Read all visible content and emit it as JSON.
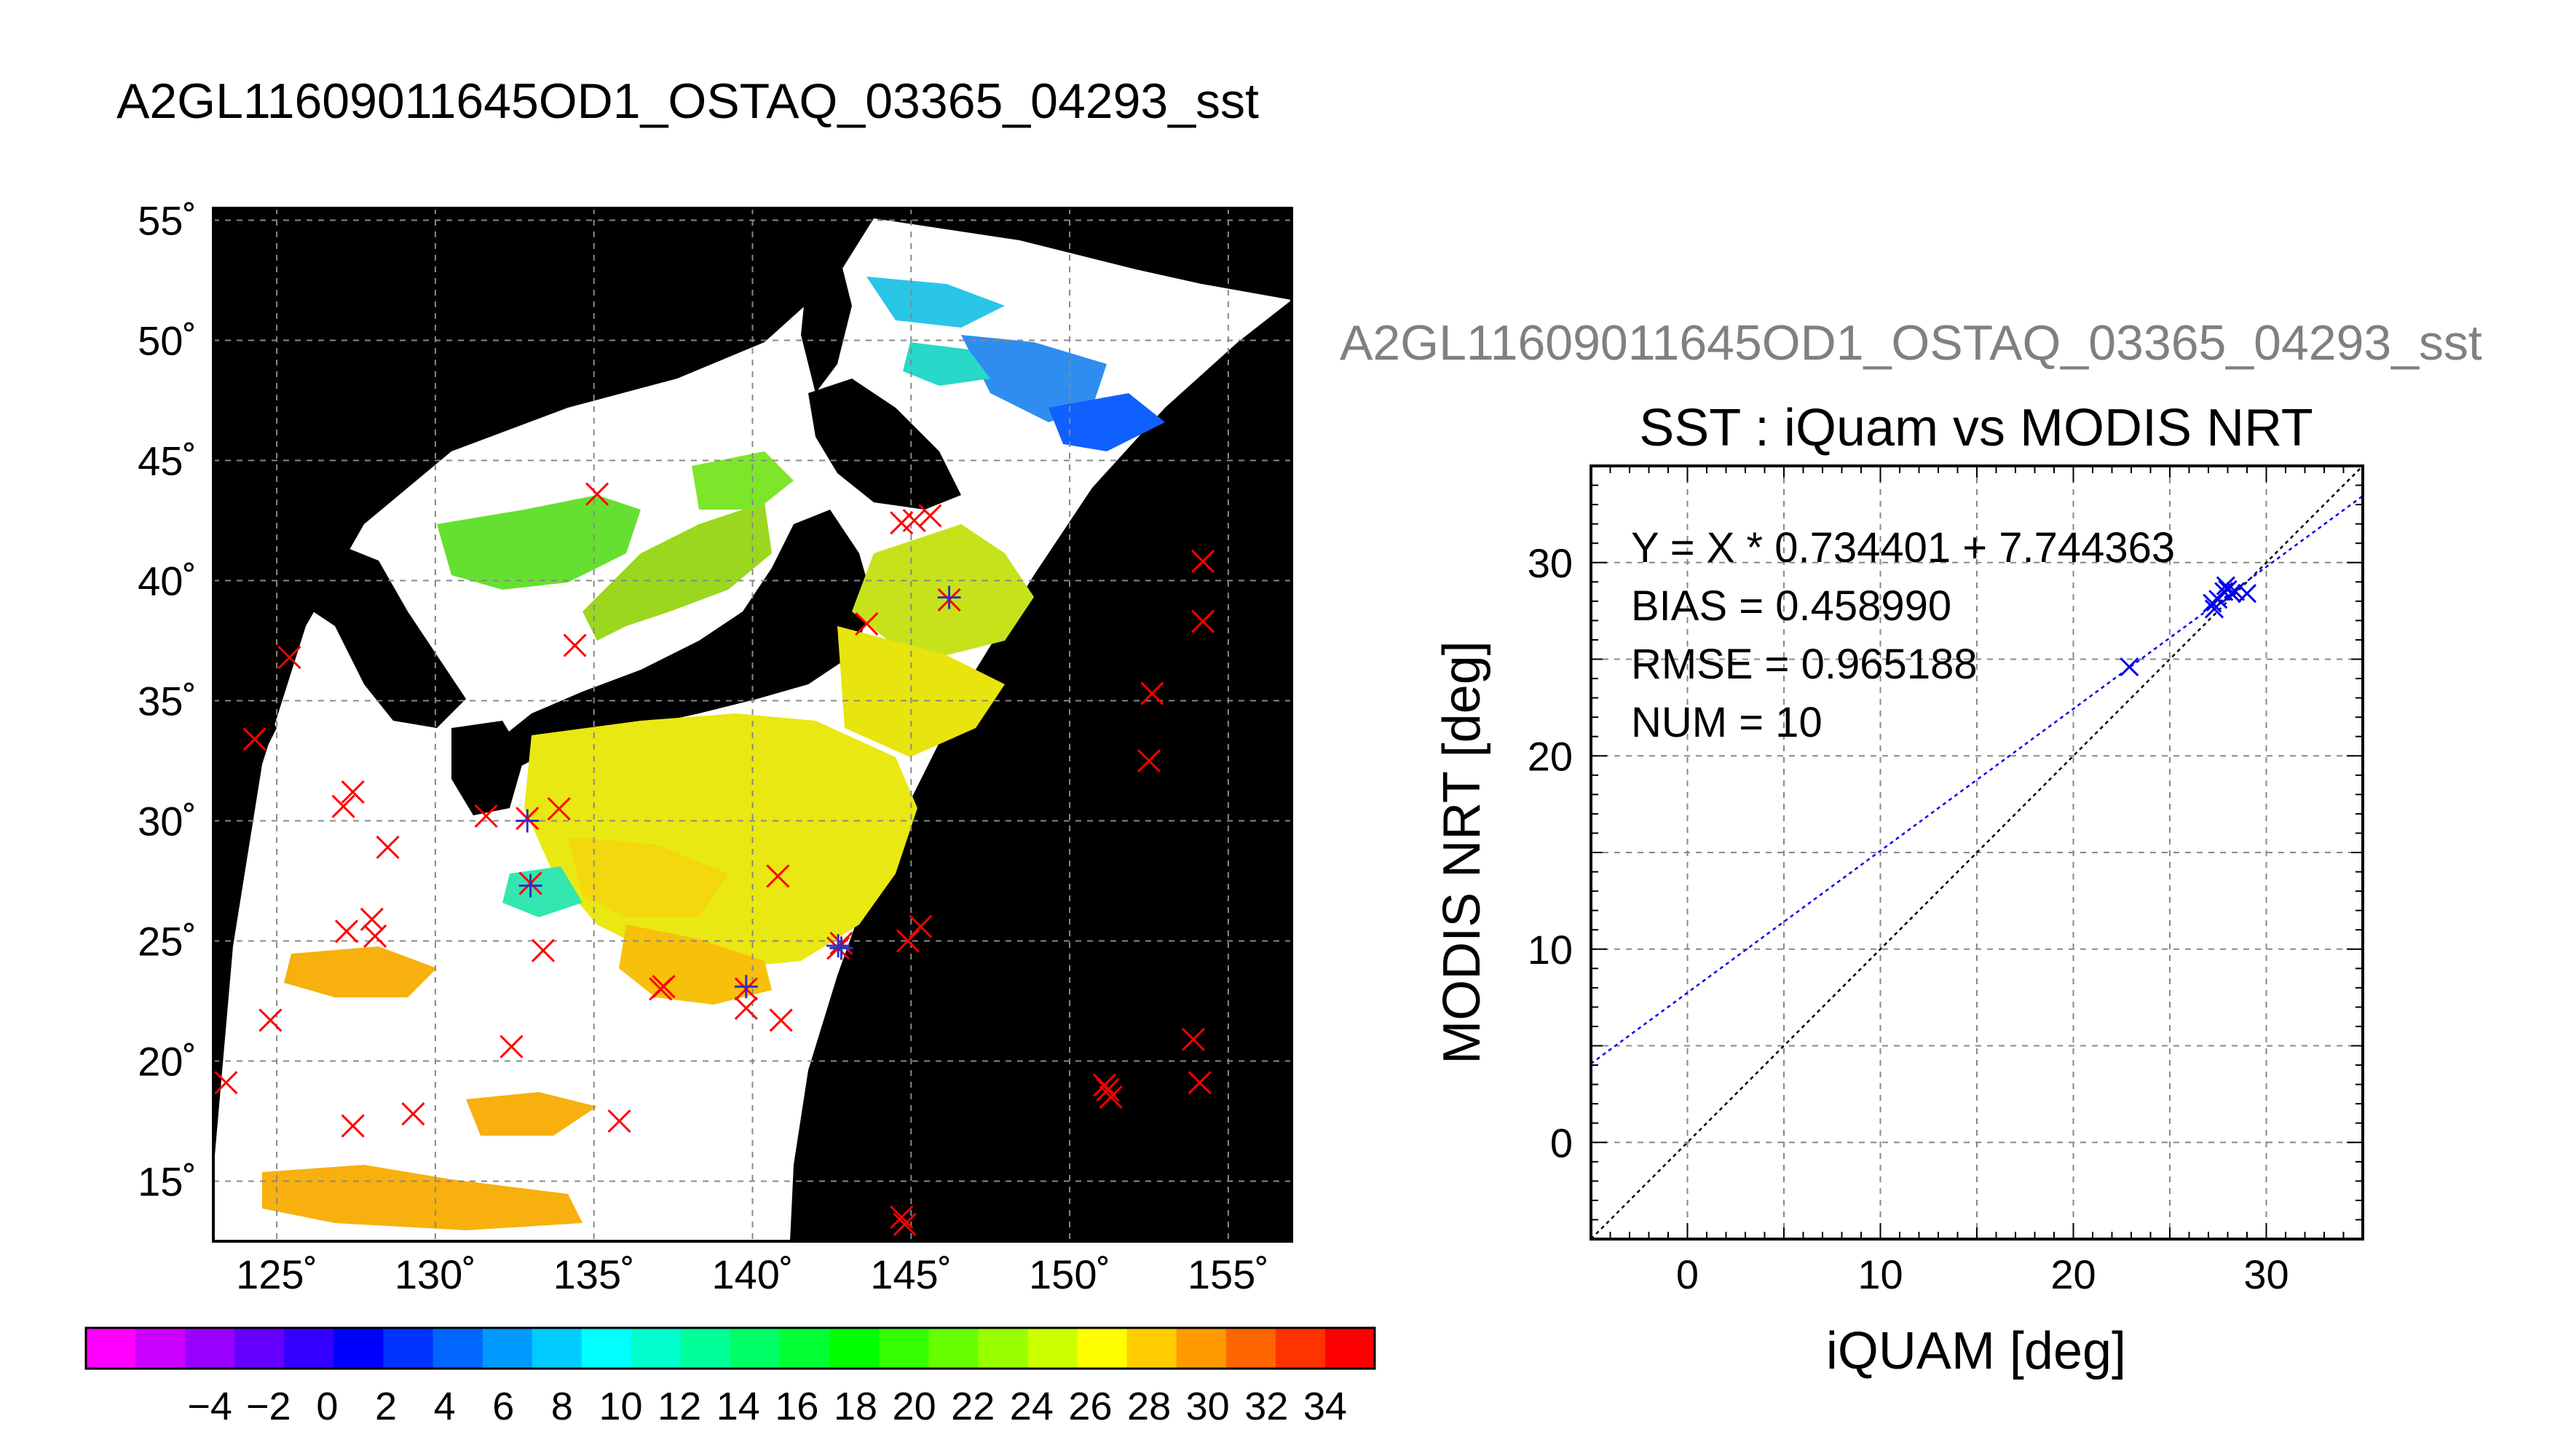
{
  "title": "A2GL11609011645OD1_OSTAQ_03365_04293_sst",
  "subtitle": "A2GL11609011645OD1_OSTAQ_03365_04293_sst",
  "map": {
    "lon_ticks": [
      "125˚",
      "130˚",
      "135˚",
      "140˚",
      "145˚",
      "150˚",
      "155˚"
    ],
    "lat_ticks": [
      "15˚",
      "20˚",
      "25˚",
      "30˚",
      "35˚",
      "40˚",
      "45˚",
      "50˚",
      "55˚"
    ],
    "lon_range": [
      123,
      157
    ],
    "lat_range": [
      12.5,
      55.5
    ],
    "iquam_points": [
      [
        123.4,
        19.1
      ],
      [
        124.3,
        33.4
      ],
      [
        124.8,
        21.7
      ],
      [
        125.4,
        36.8
      ],
      [
        127.1,
        30.6
      ],
      [
        127.4,
        31.2
      ],
      [
        127.2,
        25.4
      ],
      [
        128.0,
        25.9
      ],
      [
        128.1,
        25.2
      ],
      [
        128.5,
        28.9
      ],
      [
        127.4,
        17.3
      ],
      [
        129.3,
        17.8
      ],
      [
        131.6,
        30.2
      ],
      [
        132.4,
        20.6
      ],
      [
        132.9,
        30.1
      ],
      [
        133.0,
        27.4
      ],
      [
        133.4,
        24.6
      ],
      [
        133.9,
        30.5
      ],
      [
        134.4,
        37.3
      ],
      [
        135.1,
        43.6
      ],
      [
        135.8,
        17.5
      ],
      [
        137.1,
        23.0
      ],
      [
        137.2,
        23.1
      ],
      [
        139.8,
        23.0
      ],
      [
        139.8,
        22.2
      ],
      [
        140.8,
        27.7
      ],
      [
        140.9,
        21.7
      ],
      [
        142.7,
        24.7
      ],
      [
        142.8,
        24.9
      ],
      [
        143.6,
        38.2
      ],
      [
        144.7,
        42.4
      ],
      [
        145.1,
        42.5
      ],
      [
        145.6,
        42.7
      ],
      [
        146.2,
        39.2
      ],
      [
        144.9,
        25.0
      ],
      [
        145.3,
        25.6
      ],
      [
        144.7,
        13.5
      ],
      [
        144.8,
        13.2
      ],
      [
        151.1,
        19.0
      ],
      [
        151.3,
        18.5
      ],
      [
        151.2,
        18.8
      ],
      [
        152.5,
        32.5
      ],
      [
        152.6,
        35.3
      ],
      [
        153.9,
        20.9
      ],
      [
        154.1,
        19.1
      ],
      [
        154.2,
        38.3
      ],
      [
        154.2,
        40.8
      ]
    ],
    "matchup_points": [
      [
        132.9,
        30.0
      ],
      [
        133.0,
        27.3
      ],
      [
        139.8,
        23.1
      ],
      [
        142.7,
        24.8
      ],
      [
        142.8,
        24.7
      ],
      [
        146.2,
        39.3
      ]
    ]
  },
  "chart_data": {
    "type": "scatter",
    "title": "SST : iQuam vs MODIS NRT",
    "xlabel": "iQUAM [deg]",
    "ylabel": "MODIS NRT [deg]",
    "xlim": [
      -5,
      35
    ],
    "ylim": [
      -5,
      35
    ],
    "x_ticks": [
      0,
      10,
      20,
      30
    ],
    "y_ticks": [
      0,
      10,
      20,
      30
    ],
    "grid": true,
    "points": [
      {
        "x": 22.9,
        "y": 24.6
      },
      {
        "x": 27.2,
        "y": 27.9
      },
      {
        "x": 27.3,
        "y": 27.6
      },
      {
        "x": 27.5,
        "y": 28.1
      },
      {
        "x": 27.8,
        "y": 28.5
      },
      {
        "x": 27.9,
        "y": 28.8
      },
      {
        "x": 28.0,
        "y": 28.6
      },
      {
        "x": 28.2,
        "y": 28.4
      },
      {
        "x": 28.4,
        "y": 28.5
      },
      {
        "x": 29.0,
        "y": 28.4
      }
    ],
    "fit": {
      "slope": 0.734401,
      "intercept": 7.744363
    },
    "annotations": [
      "Y = X * 0.734401 + 7.744363",
      "BIAS = 0.458990",
      "RMSE = 0.965188",
      "NUM = 10"
    ]
  },
  "colorbar": {
    "labels": [
      "−4",
      "−2",
      "0",
      "2",
      "4",
      "6",
      "8",
      "10",
      "12",
      "14",
      "16",
      "18",
      "20",
      "22",
      "24",
      "26",
      "28",
      "30",
      "32",
      "34"
    ],
    "colors": [
      "#ff00ff",
      "#cc00ff",
      "#9900ff",
      "#6600ff",
      "#3300ff",
      "#0000ff",
      "#0033ff",
      "#0066ff",
      "#0099ff",
      "#00ccff",
      "#00ffff",
      "#00ffcc",
      "#00ff99",
      "#00ff66",
      "#00ff33",
      "#00ff00",
      "#33ff00",
      "#66ff00",
      "#99ff00",
      "#ccff00",
      "#ffff00",
      "#ffcc00",
      "#ff9900",
      "#ff6600",
      "#ff3300",
      "#ff0000"
    ]
  }
}
